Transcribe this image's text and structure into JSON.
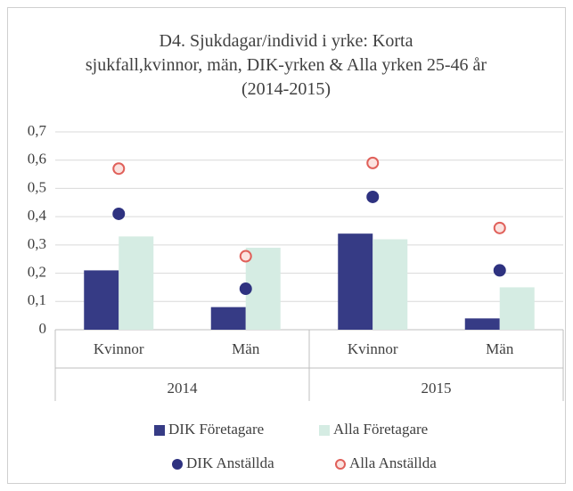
{
  "chart_data": {
    "type": "bar",
    "title": "D4. Sjukdagar/individ  i yrke: Korta sjukfall,kvinnor, män, DIK-yrken & Alla yrken 25-46 år (2014-2015)",
    "categories": [
      "Kvinnor",
      "Män",
      "Kvinnor",
      "Män"
    ],
    "group_labels": [
      "2014",
      "2015"
    ],
    "series": [
      {
        "name": "DIK Företagare",
        "type": "bar",
        "color": "#363b85",
        "values": [
          0.21,
          0.08,
          0.34,
          0.04
        ]
      },
      {
        "name": "Alla Företagare",
        "type": "bar",
        "color": "#d5ece3",
        "values": [
          0.33,
          0.29,
          0.32,
          0.15
        ]
      },
      {
        "name": "DIK Anställda",
        "type": "scatter",
        "color": "#2e3280",
        "values": [
          0.41,
          0.145,
          0.47,
          0.21
        ]
      },
      {
        "name": "Alla Anställda",
        "type": "scatter",
        "color": "#e0605a",
        "values": [
          0.57,
          0.26,
          0.59,
          0.36
        ]
      }
    ],
    "ylim": [
      0,
      0.7
    ],
    "yticks": [
      0,
      {
        "value": 0.1,
        "label": "0,1"
      },
      {
        "value": 0.2,
        "label": "0,2"
      },
      {
        "value": 0.3,
        "label": "0,3"
      },
      {
        "value": 0.4,
        "label": "0,4"
      },
      {
        "value": 0.5,
        "label": "0,5"
      },
      {
        "value": 0.6,
        "label": "0,6"
      },
      {
        "value": 0.7,
        "label": "0,7"
      }
    ],
    "grid": true,
    "legend": "bottom"
  }
}
